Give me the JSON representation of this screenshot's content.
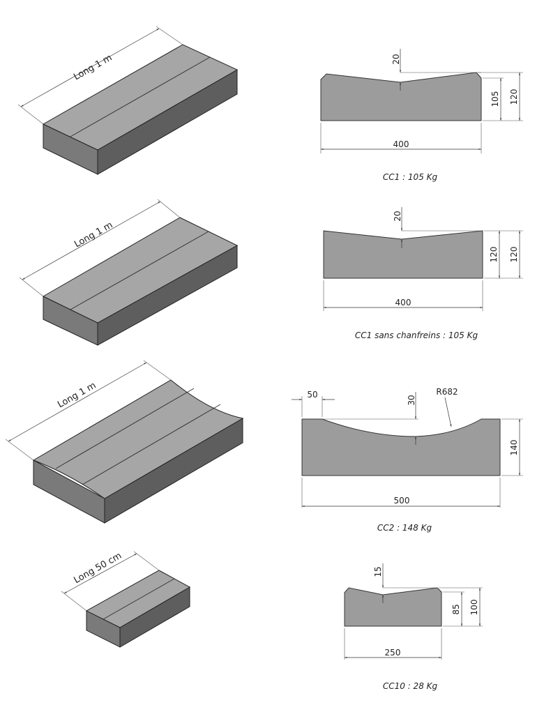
{
  "blocks": [
    {
      "id": "CC1",
      "length_label": "Long 1 m",
      "caption": "CC1 : 105 Kg",
      "dims": {
        "depth": "20",
        "inner_height": "105",
        "total_height": "120",
        "width": "400"
      }
    },
    {
      "id": "CC1-sans",
      "length_label": "Long 1 m",
      "caption": "CC1 sans chanfreins : 105 Kg",
      "dims": {
        "depth": "20",
        "inner_height": "120",
        "total_height": "120",
        "width": "400"
      }
    },
    {
      "id": "CC2",
      "length_label": "Long 1 m",
      "caption": "CC2 : 148 Kg",
      "dims": {
        "edge": "50",
        "depth": "30",
        "radius": "R682",
        "total_height": "140",
        "width": "500"
      }
    },
    {
      "id": "CC10",
      "length_label": "Long 50 cm",
      "caption": "CC10 : 28 Kg",
      "dims": {
        "depth": "15",
        "inner_height": "85",
        "total_height": "100",
        "width": "250"
      }
    }
  ],
  "colors": {
    "concrete_top": "#a6a6a6",
    "concrete_side": "#5e5e5e",
    "profile": "#9c9c9c"
  }
}
